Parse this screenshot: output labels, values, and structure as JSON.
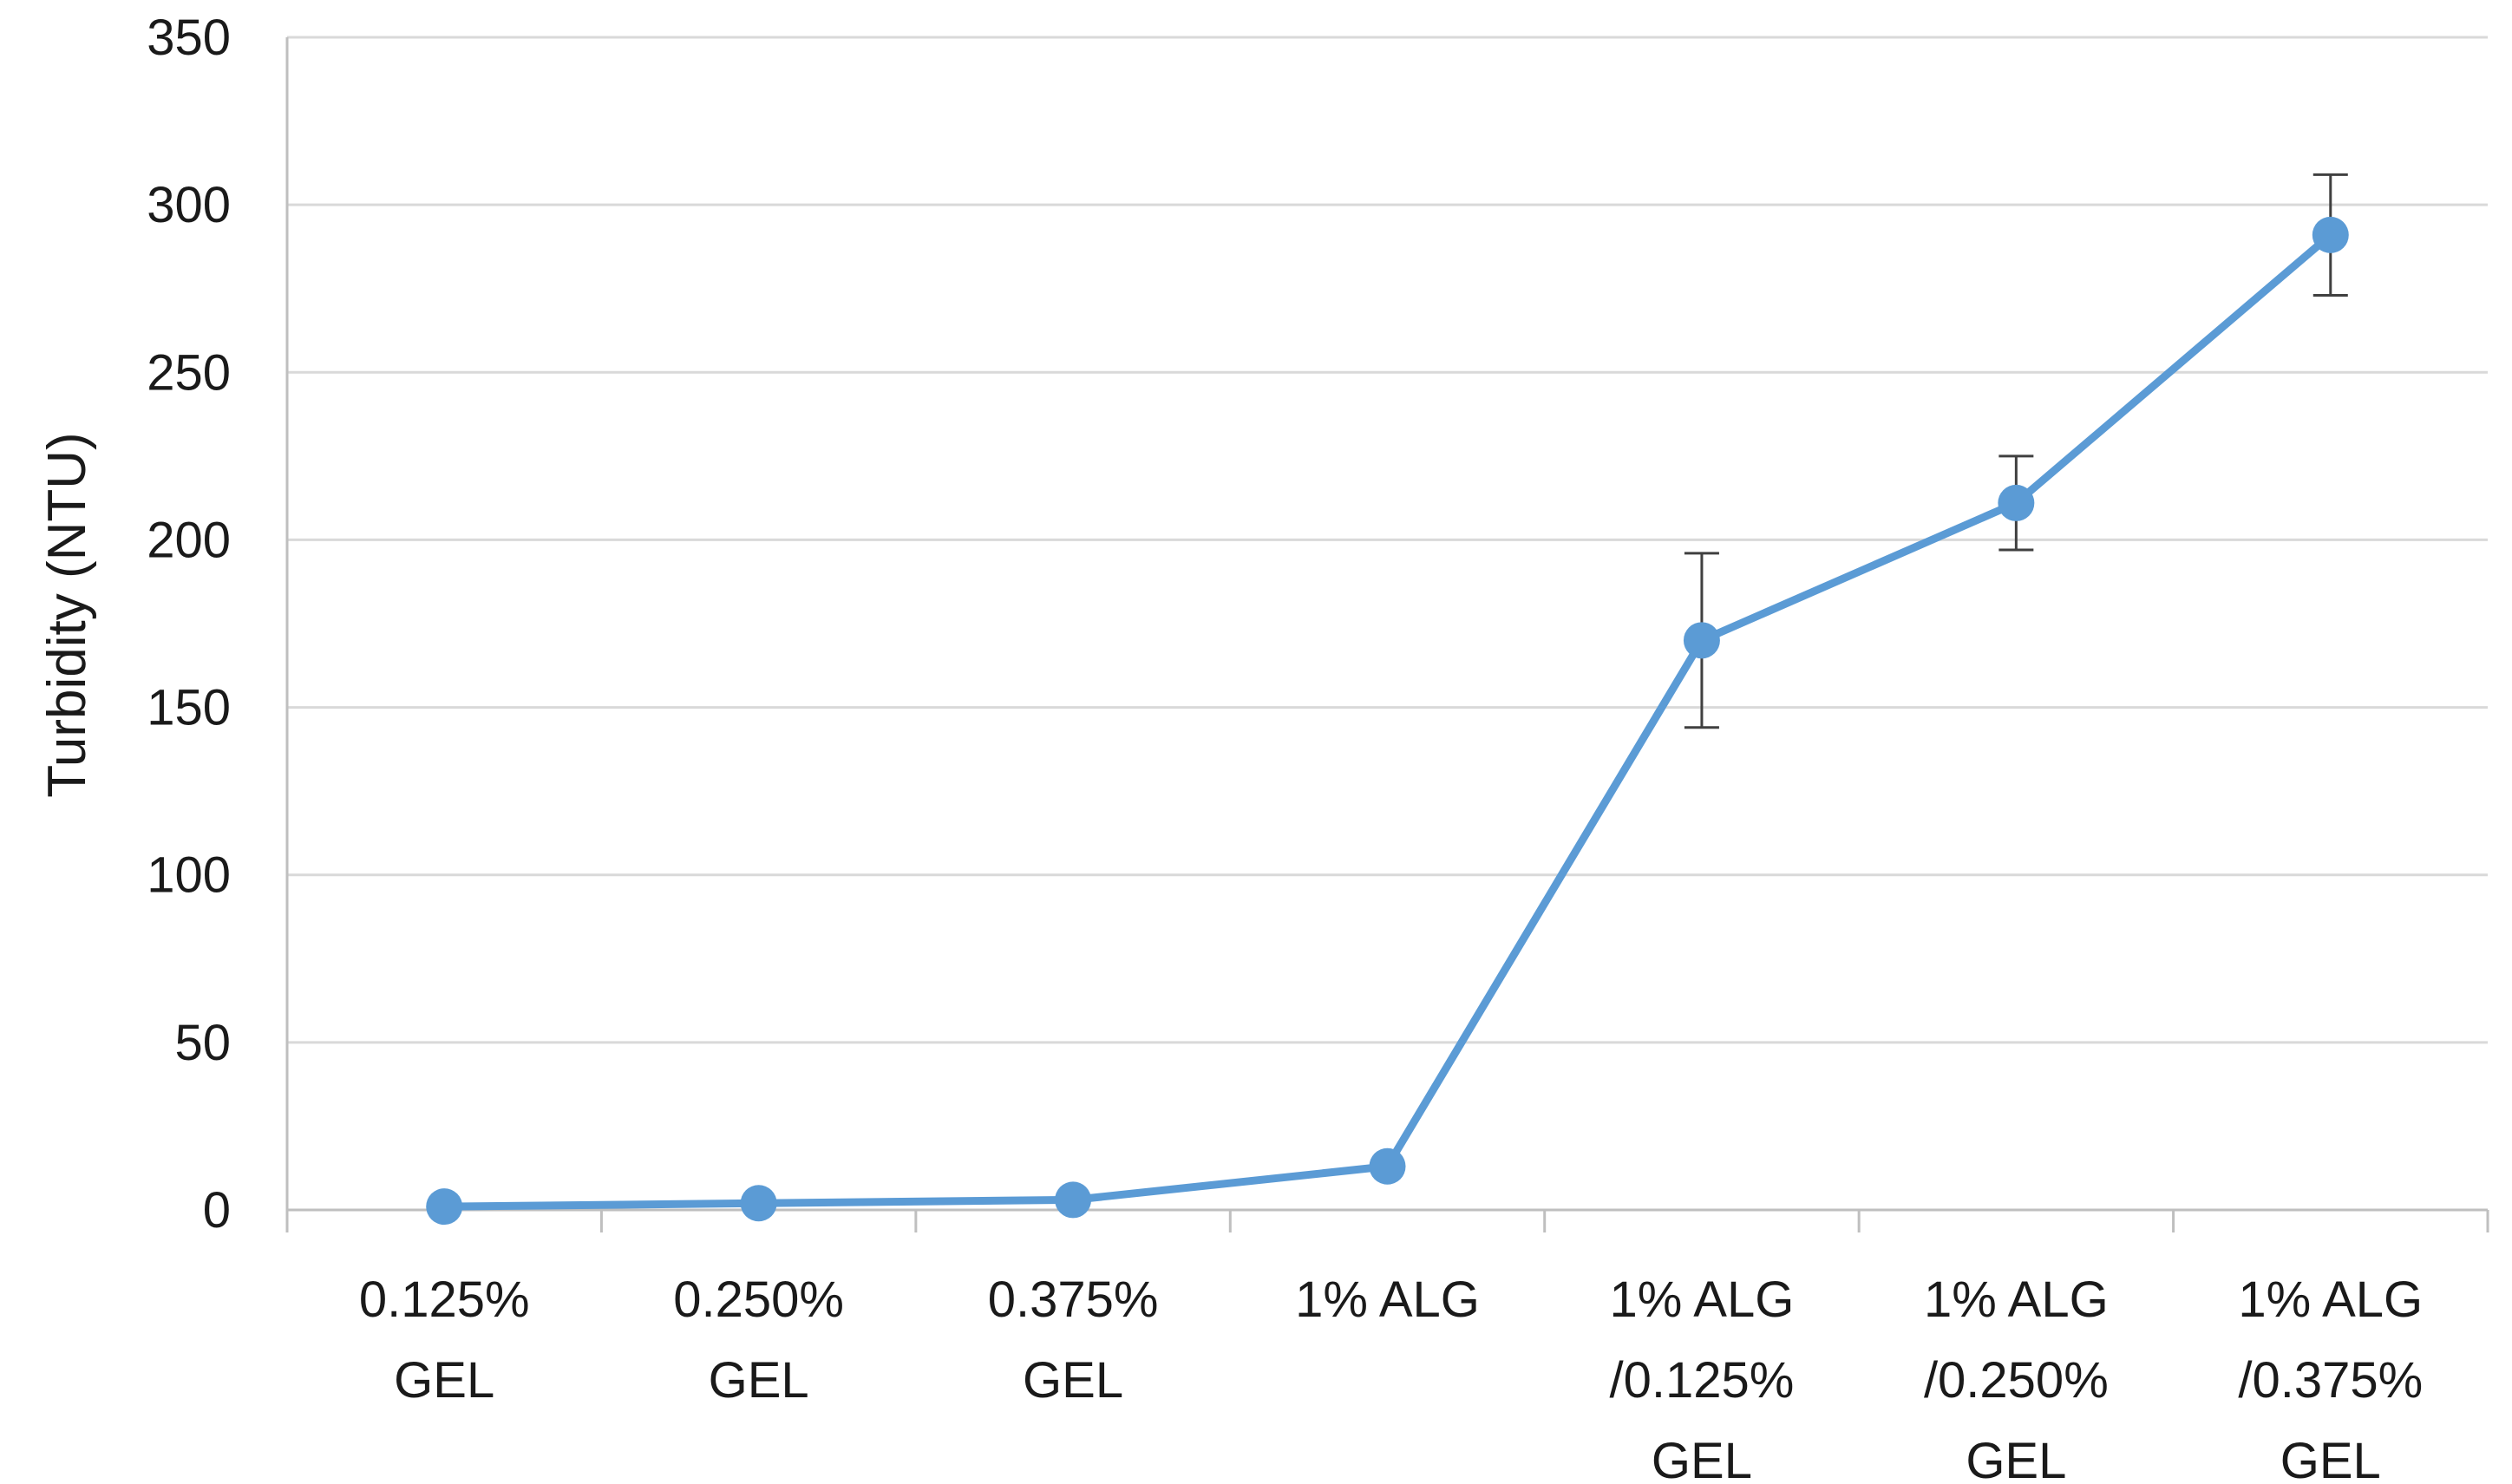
{
  "chart_data": {
    "type": "line",
    "title": "",
    "xlabel": "",
    "ylabel": "Turbidity (NTU)",
    "ylim": [
      0,
      350
    ],
    "yticks": [
      0,
      50,
      100,
      150,
      200,
      250,
      300,
      350
    ],
    "grid": true,
    "legend": "none",
    "categories": [
      [
        "0.125%",
        "GEL"
      ],
      [
        "0.250%",
        "GEL"
      ],
      [
        "0.375%",
        "GEL"
      ],
      [
        "1% ALG"
      ],
      [
        "1% ALG",
        "/0.125%",
        "GEL"
      ],
      [
        "1% ALG",
        "/0.250%",
        "GEL"
      ],
      [
        "1% ALG",
        "/0.375%",
        "GEL"
      ]
    ],
    "series": [
      {
        "values": [
          1,
          2,
          3,
          13,
          170,
          211,
          291
        ],
        "error": [
          0,
          0,
          0,
          0,
          26,
          14,
          18
        ],
        "color": "#5b9bd5"
      }
    ],
    "colors": {
      "gridline": "#d9d9d9",
      "axis": "#bfbfbf",
      "errorbar": "#404040"
    }
  }
}
